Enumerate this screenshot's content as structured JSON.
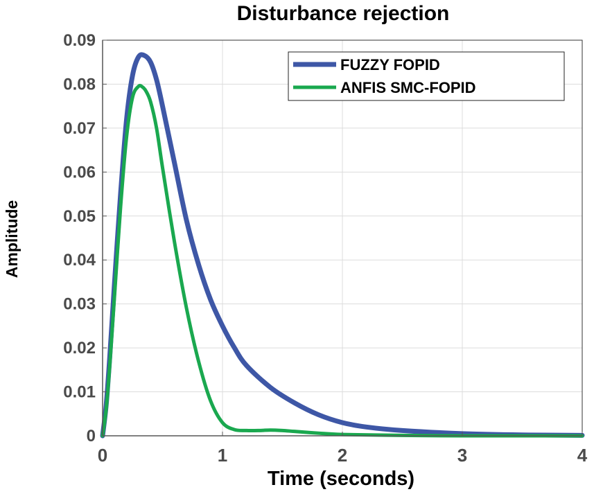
{
  "chart_data": {
    "type": "line",
    "title": "Disturbance rejection",
    "xlabel": "Time (seconds)",
    "ylabel": "Amplitude",
    "xlim": [
      0,
      4
    ],
    "ylim": [
      0,
      0.09
    ],
    "xticks": [
      0,
      1,
      2,
      3,
      4
    ],
    "xtick_labels": [
      "0",
      "1",
      "2",
      "3",
      "4"
    ],
    "yticks": [
      0,
      0.01,
      0.02,
      0.03,
      0.04,
      0.05,
      0.06,
      0.07,
      0.08,
      0.09
    ],
    "ytick_labels": [
      "0",
      "0.01",
      "0.02",
      "0.03",
      "0.04",
      "0.05",
      "0.06",
      "0.07",
      "0.08",
      "0.09"
    ],
    "grid": true,
    "legend_position": "top-right",
    "series": [
      {
        "name": "FUZZY FOPID",
        "color": "#3e57a6",
        "x": [
          0,
          0.03,
          0.06,
          0.1,
          0.15,
          0.2,
          0.25,
          0.3,
          0.35,
          0.4,
          0.45,
          0.5,
          0.6,
          0.7,
          0.8,
          0.9,
          1.0,
          1.1,
          1.2,
          1.4,
          1.6,
          1.8,
          2.0,
          2.2,
          2.5,
          3.0,
          3.5,
          4.0
        ],
        "y": [
          0,
          0.007,
          0.018,
          0.035,
          0.055,
          0.072,
          0.082,
          0.0862,
          0.0865,
          0.085,
          0.081,
          0.075,
          0.062,
          0.049,
          0.039,
          0.031,
          0.025,
          0.02,
          0.016,
          0.011,
          0.0075,
          0.0048,
          0.003,
          0.002,
          0.0012,
          0.0005,
          0.0002,
          0.0001
        ]
      },
      {
        "name": "ANFIS SMC-FOPID",
        "color": "#1aa84f",
        "x": [
          0,
          0.03,
          0.06,
          0.1,
          0.15,
          0.2,
          0.25,
          0.3,
          0.33,
          0.36,
          0.4,
          0.45,
          0.5,
          0.6,
          0.7,
          0.8,
          0.9,
          1.0,
          1.1,
          1.2,
          1.3,
          1.4,
          1.5,
          1.6,
          1.8,
          2.0,
          2.5,
          3.0,
          4.0
        ],
        "y": [
          0,
          0.006,
          0.016,
          0.032,
          0.052,
          0.068,
          0.077,
          0.0795,
          0.0794,
          0.0785,
          0.076,
          0.07,
          0.061,
          0.044,
          0.029,
          0.017,
          0.008,
          0.003,
          0.0014,
          0.0012,
          0.0012,
          0.0013,
          0.0012,
          0.001,
          0.0006,
          0.0003,
          0.0001,
          0,
          0
        ]
      }
    ]
  }
}
